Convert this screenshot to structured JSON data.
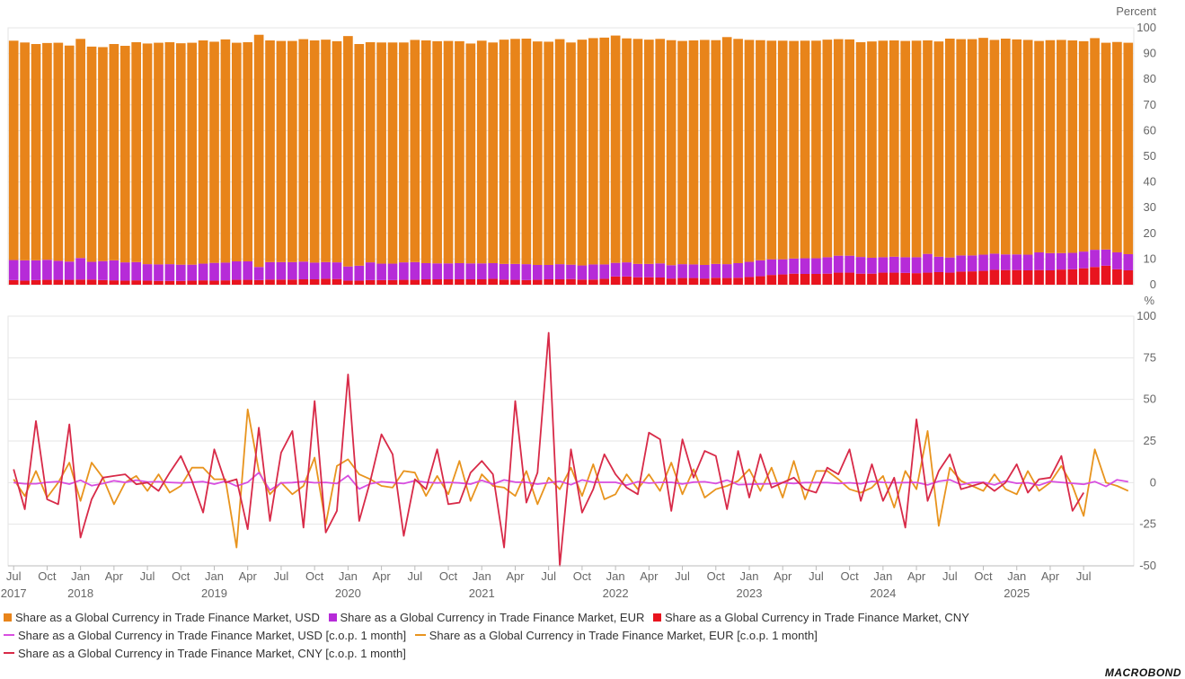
{
  "colors": {
    "usd": "#E8841A",
    "eur": "#B62BD8",
    "cny": "#E8141E",
    "usd_line": "#D84FE0",
    "eur_line": "#E8941E",
    "cny_line": "#D82A48"
  },
  "chart_data": [
    {
      "type": "bar",
      "stacked": true,
      "ylabel": "Percent",
      "ylim": [
        0,
        100
      ],
      "yticks": [
        "0",
        "10",
        "20",
        "30",
        "40",
        "50",
        "60",
        "70",
        "80",
        "90",
        "100"
      ],
      "start_month": "2017-07",
      "series": [
        {
          "name": "Share as a Global Currency in Trade Finance Market, USD",
          "values": [
            85.4,
            84.8,
            84.2,
            84.4,
            84.9,
            84.1,
            85.3,
            83.8,
            83.3,
            84.2,
            84.3,
            85.6,
            85.9,
            86.3,
            86.4,
            86.2,
            86.4,
            86.9,
            86.1,
            86.9,
            85.1,
            85.3,
            90.4,
            86.3,
            86.1,
            86.1,
            86.6,
            86.5,
            86.6,
            86.1,
            89.7,
            86.3,
            85.7,
            86.1,
            86.1,
            85.6,
            86.5,
            86.7,
            86.5,
            86.6,
            86.4,
            85.6,
            86.7,
            85.9,
            87.3,
            87.6,
            87.8,
            87.0,
            86.9,
            87.6,
            86.5,
            87.9,
            88.1,
            88.3,
            88.5,
            87.2,
            87.6,
            87.3,
            87.4,
            87.6,
            86.9,
            87.2,
            87.6,
            87.1,
            88.4,
            87.3,
            86.4,
            85.7,
            85.1,
            85.1,
            84.7,
            84.7,
            84.7,
            84.7,
            84.3,
            84.2,
            83.6,
            84.2,
            84.3,
            84.2,
            84.2,
            84.3,
            83.1,
            83.8,
            85.2,
            84.2,
            84.2,
            84.4,
            83.2,
            84.0,
            83.7,
            83.6,
            82.3,
            82.9,
            83.0,
            82.7,
            81.9,
            82.4,
            80.5,
            81.9,
            82.3
          ]
        },
        {
          "name": "Share as a Global Currency in Trade Finance Market, EUR",
          "values": [
            7.8,
            7.9,
            7.7,
            7.8,
            7.4,
            7.1,
            8.4,
            6.9,
            7.4,
            7.8,
            7.1,
            7.1,
            6.4,
            6.4,
            6.5,
            6.3,
            6.2,
            6.5,
            6.9,
            6.9,
            7.2,
            7.2,
            5.1,
            6.8,
            6.8,
            6.8,
            6.9,
            6.5,
            6.5,
            6.5,
            5.5,
            5.8,
            6.9,
            6.4,
            6.4,
            6.8,
            6.9,
            6.3,
            6.2,
            6.2,
            6.3,
            6.2,
            6.2,
            6.1,
            6.1,
            6.2,
            6.2,
            5.8,
            5.6,
            5.9,
            5.6,
            5.5,
            5.9,
            5.6,
            5.3,
            5.5,
            5.2,
            5.2,
            5.5,
            5.2,
            5.4,
            5.3,
            5.3,
            5.4,
            5.4,
            5.7,
            5.9,
            6.2,
            6.1,
            5.9,
            5.9,
            6.1,
            6.1,
            6.4,
            6.6,
            6.6,
            6.5,
            6.2,
            6.0,
            6.2,
            6.1,
            6.2,
            7.3,
            6.0,
            5.9,
            6.3,
            6.2,
            6.3,
            6.3,
            6.1,
            6.1,
            6.1,
            6.9,
            6.7,
            6.4,
            6.4,
            6.5,
            6.7,
            6.3,
            6.6,
            6.3
          ]
        },
        {
          "name": "Share as a Global Currency in Trade Finance Market, CNY",
          "values": [
            1.8,
            1.6,
            1.8,
            1.9,
            1.9,
            1.9,
            2.0,
            2.0,
            1.8,
            1.7,
            1.6,
            1.7,
            1.6,
            1.5,
            1.5,
            1.5,
            1.6,
            1.7,
            1.6,
            1.7,
            1.9,
            1.9,
            1.8,
            2.0,
            2.0,
            2.0,
            2.1,
            2.1,
            2.3,
            2.2,
            1.6,
            1.6,
            1.8,
            1.8,
            1.8,
            1.9,
            1.9,
            2.1,
            2.1,
            2.1,
            2.1,
            2.1,
            2.1,
            2.3,
            2.0,
            1.9,
            1.8,
            1.9,
            2.1,
            2.1,
            2.2,
            2.0,
            2.0,
            2.3,
            3.2,
            3.2,
            2.9,
            2.9,
            2.8,
            2.4,
            2.6,
            2.6,
            2.4,
            2.7,
            2.6,
            2.7,
            3.0,
            3.3,
            3.8,
            4.0,
            4.3,
            4.2,
            4.2,
            4.3,
            4.7,
            4.7,
            4.3,
            4.3,
            4.7,
            4.7,
            4.6,
            4.5,
            4.7,
            4.9,
            4.7,
            5.1,
            5.2,
            5.4,
            5.8,
            5.7,
            5.7,
            5.6,
            5.7,
            5.6,
            5.9,
            6.0,
            6.4,
            6.9,
            7.4,
            6.0,
            5.6
          ]
        }
      ]
    },
    {
      "type": "line",
      "ylabel": "%",
      "ylim": [
        -50,
        100
      ],
      "yticks": [
        "-50",
        "-25",
        "0",
        "25",
        "50",
        "75",
        "100"
      ],
      "start_month": "2017-07",
      "series": [
        {
          "name": "Share as a Global Currency in Trade Finance Market, USD [c.o.p. 1 month]",
          "values": [
            0.0,
            -0.7,
            -0.7,
            0.2,
            0.6,
            -0.9,
            1.4,
            -1.8,
            -0.6,
            1.1,
            0.1,
            1.5,
            0.4,
            0.5,
            0.1,
            -0.2,
            0.2,
            0.6,
            -0.9,
            0.9,
            -2.1,
            0.2,
            6.0,
            -4.5,
            -0.2,
            0.0,
            0.6,
            -0.1,
            0.1,
            -0.6,
            4.2,
            -3.8,
            -0.7,
            0.5,
            0.0,
            -0.6,
            1.1,
            0.2,
            -0.2,
            0.1,
            -0.2,
            -0.9,
            1.3,
            -0.9,
            1.6,
            0.3,
            0.2,
            -0.9,
            -0.1,
            0.8,
            -1.3,
            1.6,
            0.2,
            0.2,
            0.2,
            -1.5,
            0.5,
            -0.3,
            0.1,
            0.2,
            -0.8,
            0.3,
            0.5,
            -0.6,
            1.5,
            -1.2,
            -1.0,
            -0.8,
            -0.7,
            0.0,
            -0.5,
            0.0,
            0.0,
            0.0,
            -0.5,
            -0.1,
            -0.7,
            0.7,
            0.1,
            -0.1,
            0.0,
            0.1,
            -1.4,
            0.8,
            1.7,
            -1.2,
            0.0,
            0.2,
            -1.4,
            1.0,
            -0.4,
            -0.1,
            -1.6,
            0.7,
            0.1,
            -0.4,
            -1.0,
            0.6,
            -2.3,
            1.7,
            0.5
          ]
        },
        {
          "name": "Share as a Global Currency in Trade Finance Market, EUR [c.o.p. 1 month]",
          "values": [
            2.0,
            -8.0,
            7.0,
            -9.0,
            0.0,
            12.0,
            -11.0,
            12.0,
            3.0,
            -13.0,
            0.0,
            4.0,
            -5.0,
            5.0,
            -6.0,
            -2.0,
            9.0,
            9.0,
            2.0,
            2.0,
            -39.0,
            44.0,
            7.0,
            -7.0,
            0.0,
            -7.0,
            -2.0,
            15.0,
            -25.0,
            10.0,
            14.0,
            5.0,
            2.0,
            -2.0,
            -3.0,
            7.0,
            6.0,
            -8.0,
            4.0,
            -7.0,
            13.0,
            -11.0,
            5.0,
            -2.0,
            -3.0,
            -8.0,
            7.0,
            -13.0,
            3.0,
            -4.0,
            9.0,
            -8.0,
            11.0,
            -10.0,
            -7.0,
            5.0,
            -4.0,
            5.0,
            -5.0,
            12.0,
            -7.0,
            8.0,
            -9.0,
            -4.0,
            -2.0,
            1.0,
            8.0,
            -5.0,
            9.0,
            -9.0,
            13.0,
            -10.0,
            7.0,
            7.0,
            2.0,
            -4.0,
            -6.0,
            -3.0,
            4.0,
            -15.0,
            7.0,
            -4.0,
            31.0,
            -26.0,
            9.0,
            1.0,
            -2.0,
            -5.0,
            5.0,
            -4.0,
            -7.0,
            7.0,
            -5.0,
            0.0,
            10.0,
            -2.0,
            -20.0,
            20.0,
            0.0,
            -2.0,
            -5.0
          ]
        },
        {
          "name": "Share as a Global Currency in Trade Finance Market, CNY [c.o.p. 1 month]",
          "values": [
            8.0,
            -16.0,
            37.0,
            -10.0,
            -13.0,
            35.0,
            -33.0,
            -10.0,
            3.0,
            4.0,
            5.0,
            -1.0,
            0.0,
            -5.0,
            6.0,
            16.0,
            1.0,
            -18.0,
            20.0,
            0.0,
            2.0,
            -28.0,
            33.0,
            -23.0,
            18.0,
            31.0,
            -27.0,
            49.0,
            -30.0,
            -17.0,
            65.0,
            -23.0,
            1.0,
            29.0,
            17.0,
            -32.0,
            2.0,
            -4.0,
            20.0,
            -13.0,
            -12.0,
            6.0,
            13.0,
            5.0,
            -39.0,
            49.0,
            -12.0,
            6.0,
            90.0,
            -50.0,
            20.0,
            -18.0,
            -4.0,
            17.0,
            5.0,
            -3.0,
            -7.0,
            30.0,
            26.0,
            -17.0,
            26.0,
            3.0,
            19.0,
            16.0,
            -16.0,
            19.0,
            -9.0,
            17.0,
            -3.0,
            0.0,
            3.0,
            -4.0,
            -6.0,
            9.0,
            5.0,
            20.0,
            -11.0,
            11.0,
            -11.0,
            3.0,
            -27.0,
            38.0,
            -11.0,
            7.0,
            17.0,
            -4.0,
            -2.0,
            0.0,
            -5.0,
            0.0,
            11.0,
            -6.0,
            2.0,
            3.0,
            16.0,
            -17.0,
            -6.0
          ]
        }
      ]
    }
  ],
  "x_axis": {
    "months": [
      "Jul",
      "Oct",
      "Jan",
      "Apr",
      "Jul",
      "Oct",
      "Jan",
      "Apr",
      "Jul",
      "Oct",
      "Jan",
      "Apr",
      "Jul",
      "Oct",
      "Jan",
      "Apr",
      "Jul",
      "Oct",
      "Jan",
      "Apr",
      "Jul",
      "Oct",
      "Jan",
      "Apr",
      "Jul",
      "Oct",
      "Jan",
      "Apr",
      "Jul",
      "Oct",
      "Jan",
      "Apr",
      "Jul"
    ],
    "years": [
      "2017",
      "2018",
      "2019",
      "2020",
      "2021",
      "2022",
      "2023",
      "2024",
      "2025"
    ]
  },
  "legend": {
    "usd": "Share as a Global Currency in Trade Finance Market, USD",
    "eur": "Share as a Global Currency in Trade Finance Market, EUR",
    "cny": "Share as a Global Currency in Trade Finance Market, CNY",
    "usd_line": "Share as a Global Currency in Trade Finance Market, USD [c.o.p. 1 month]",
    "eur_line": "Share as a Global Currency in Trade Finance Market, EUR [c.o.p. 1 month]",
    "cny_line": "Share as a Global Currency in Trade Finance Market, CNY [c.o.p. 1 month]"
  },
  "logo": "MACROBOND"
}
